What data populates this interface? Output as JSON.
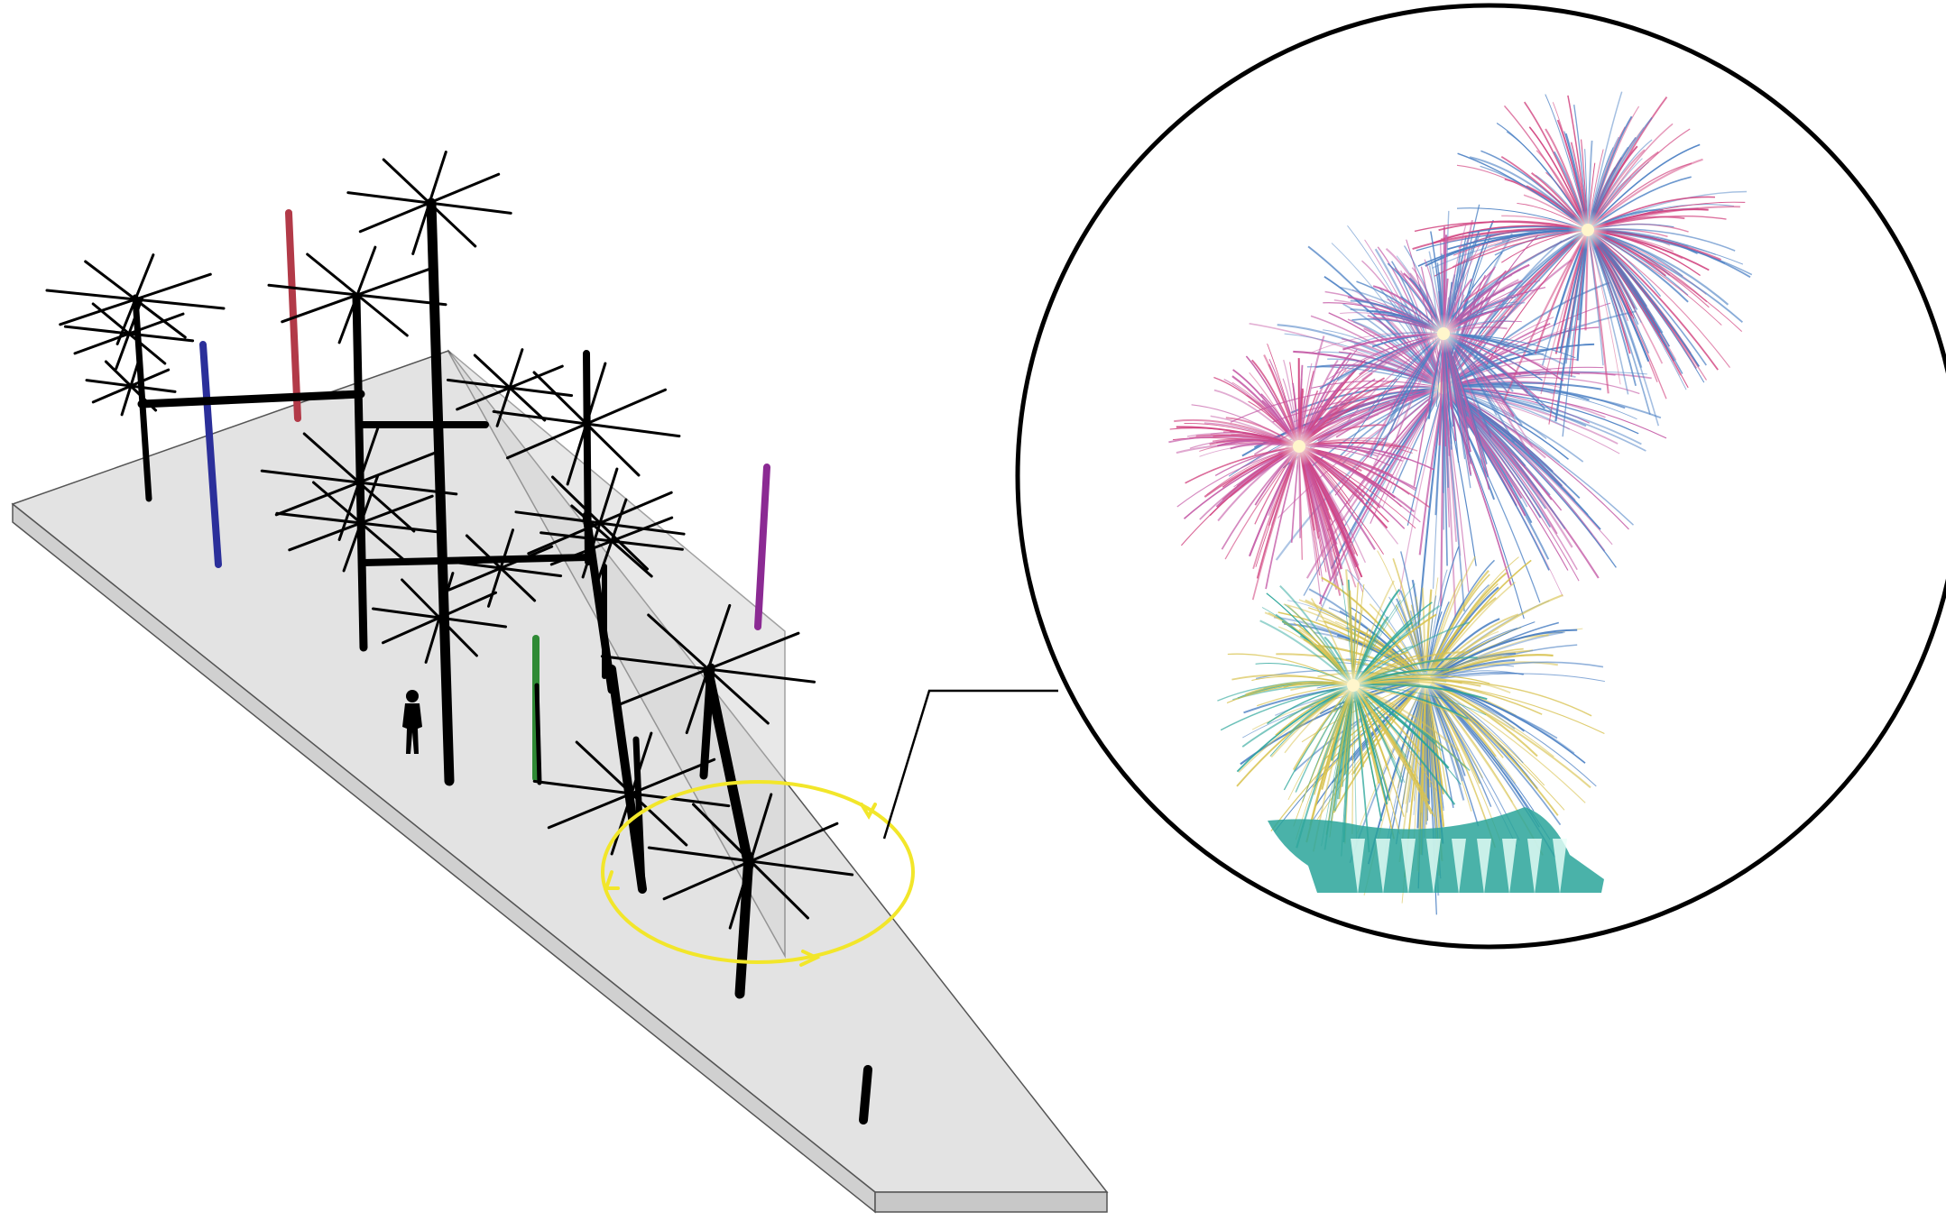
{
  "diagram": {
    "has_text": false,
    "colors": {
      "platform_fill": "#e3e3e3",
      "platform_edge": "#555555",
      "structure": "#000000",
      "pole_red": "#b23a48",
      "pole_blue": "#2b2f9a",
      "pole_purple": "#8b2a93",
      "pole_green": "#2f8a35",
      "rotation_ring": "#f2e62a",
      "inset_border": "#000000",
      "firework_magenta": "#d1437f",
      "firework_pink": "#c45aa6",
      "firework_blue": "#4a7fc3",
      "firework_gold": "#d8c24f",
      "firework_teal": "#2aa59a"
    },
    "elements": {
      "poles": [
        "red",
        "blue",
        "purple",
        "green",
        "black"
      ],
      "human_figure": "person-silhouette",
      "rotation_indicator": "yellow-ring-with-arrows",
      "inset": "circular-firework-detail"
    }
  }
}
